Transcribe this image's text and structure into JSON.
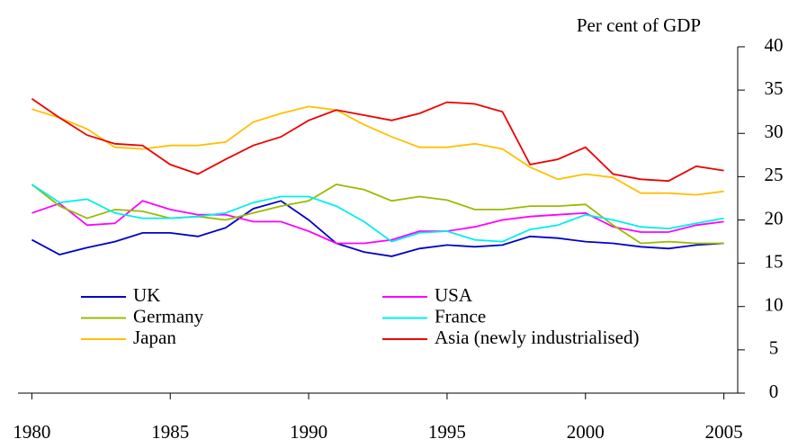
{
  "chart_data": {
    "type": "line",
    "y_label": "Per cent of GDP",
    "x": [
      1980,
      1981,
      1982,
      1983,
      1984,
      1985,
      1986,
      1987,
      1988,
      1989,
      1990,
      1991,
      1992,
      1993,
      1994,
      1995,
      1996,
      1997,
      1998,
      1999,
      2000,
      2001,
      2002,
      2003,
      2004,
      2005
    ],
    "xlim": [
      1979.5,
      2005.5
    ],
    "xticks": [
      1980,
      1985,
      1990,
      1995,
      2000,
      2005
    ],
    "ylim": [
      0,
      40
    ],
    "yticks": [
      0,
      5,
      10,
      15,
      20,
      25,
      30,
      35,
      40
    ],
    "series": [
      {
        "name": "UK",
        "color": "#0000cc",
        "values": [
          17.7,
          16.0,
          16.8,
          17.5,
          18.5,
          18.5,
          18.1,
          19.1,
          21.3,
          22.2,
          20.0,
          17.3,
          16.3,
          15.8,
          16.7,
          17.1,
          16.9,
          17.1,
          18.1,
          17.9,
          17.5,
          17.3,
          16.9,
          16.7,
          17.1,
          17.3
        ]
      },
      {
        "name": "USA",
        "color": "#ff00ff",
        "values": [
          20.8,
          21.9,
          19.4,
          19.6,
          22.2,
          21.2,
          20.6,
          20.6,
          19.8,
          19.8,
          18.7,
          17.3,
          17.3,
          17.7,
          18.7,
          18.7,
          19.2,
          20.0,
          20.4,
          20.6,
          20.8,
          19.2,
          18.6,
          18.6,
          19.4,
          19.8
        ]
      },
      {
        "name": "Germany",
        "color": "#99bb00",
        "values": [
          24.1,
          21.6,
          20.2,
          21.2,
          21.0,
          20.2,
          20.4,
          20.0,
          20.8,
          21.6,
          22.2,
          24.1,
          23.5,
          22.2,
          22.7,
          22.3,
          21.2,
          21.2,
          21.6,
          21.6,
          21.8,
          19.4,
          17.3,
          17.5,
          17.3,
          17.3
        ]
      },
      {
        "name": "France",
        "color": "#00eeee",
        "values": [
          24.1,
          22.0,
          22.4,
          20.8,
          20.2,
          20.2,
          20.4,
          20.8,
          22.0,
          22.7,
          22.7,
          21.6,
          19.8,
          17.5,
          18.5,
          18.7,
          17.7,
          17.5,
          18.9,
          19.4,
          20.6,
          20.0,
          19.2,
          19.0,
          19.6,
          20.2
        ]
      },
      {
        "name": "Japan",
        "color": "#ffc000",
        "values": [
          32.8,
          31.8,
          30.5,
          28.4,
          28.2,
          28.6,
          28.6,
          29.0,
          31.3,
          32.3,
          33.1,
          32.7,
          31.0,
          29.6,
          28.4,
          28.4,
          28.8,
          28.2,
          26.1,
          24.7,
          25.3,
          24.9,
          23.1,
          23.1,
          22.9,
          23.3
        ]
      },
      {
        "name": "Asia (newly industrialised)",
        "color": "#ee0000",
        "values": [
          34.0,
          31.8,
          29.8,
          28.8,
          28.6,
          26.4,
          25.3,
          27.0,
          28.6,
          29.6,
          31.5,
          32.7,
          32.1,
          31.5,
          32.3,
          33.6,
          33.4,
          32.5,
          26.4,
          27.0,
          28.4,
          25.3,
          24.7,
          24.5,
          26.2,
          25.7
        ]
      }
    ]
  }
}
